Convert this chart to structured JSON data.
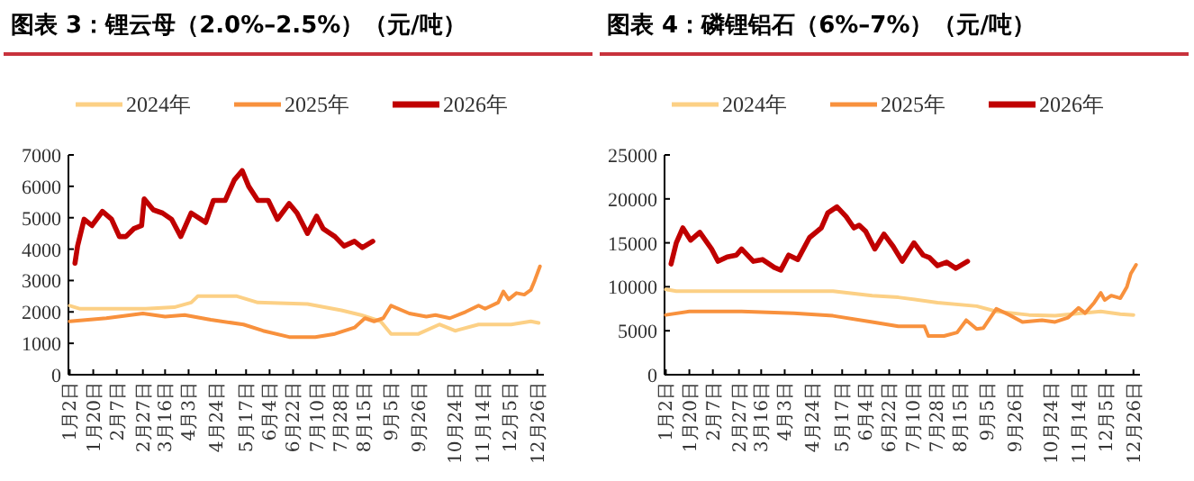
{
  "chart_data": [
    {
      "type": "line",
      "title": "图表 3：锂云母（2.0%–2.5%）（元/吨）",
      "legend": "top",
      "xlim": [
        "--01-01",
        "--12-31"
      ],
      "xticks": [
        {
          "value": "--01-02",
          "label": "1月2日"
        },
        {
          "value": "--01-20",
          "label": "1月20日"
        },
        {
          "value": "--02-07",
          "label": "2月7日"
        },
        {
          "value": "--02-27",
          "label": "2月27日"
        },
        {
          "value": "--03-16",
          "label": "3月16日"
        },
        {
          "value": "--04-03",
          "label": "4月3日"
        },
        {
          "value": "--04-24",
          "label": "4月24日"
        },
        {
          "value": "--05-17",
          "label": "5月17日"
        },
        {
          "value": "--06-04",
          "label": "6月4日"
        },
        {
          "value": "--06-22",
          "label": "6月22日"
        },
        {
          "value": "--07-10",
          "label": "7月10日"
        },
        {
          "value": "--07-28",
          "label": "7月28日"
        },
        {
          "value": "--08-15",
          "label": "8月15日"
        },
        {
          "value": "--09-05",
          "label": "9月5日"
        },
        {
          "value": "--09-26",
          "label": "9月26日"
        },
        {
          "value": "--10-24",
          "label": "10月24日"
        },
        {
          "value": "--11-14",
          "label": "11月14日"
        },
        {
          "value": "--12-05",
          "label": "12月5日"
        },
        {
          "value": "--12-26",
          "label": "12月26日"
        }
      ],
      "ylim": [
        0,
        7000
      ],
      "yticks": [
        0,
        1000,
        2000,
        3000,
        4000,
        5000,
        6000,
        7000
      ],
      "series": [
        {
          "name": "2024年",
          "color": "#fcd085",
          "x": [
            "--01-02",
            "--01-10",
            "--03-01",
            "--03-23",
            "--04-05",
            "--04-10",
            "--05-10",
            "--05-26",
            "--07-03",
            "--07-29",
            "--08-13",
            "--08-28",
            "--09-05",
            "--09-26",
            "--10-12",
            "--10-24",
            "--11-11",
            "--12-06",
            "--12-21",
            "--12-27"
          ],
          "values": [
            2200,
            2100,
            2100,
            2150,
            2300,
            2500,
            2500,
            2300,
            2250,
            2050,
            1900,
            1700,
            1300,
            1300,
            1600,
            1400,
            1600,
            1600,
            1700,
            1650
          ]
        },
        {
          "name": "2025年",
          "color": "#f8913d",
          "x": [
            "--01-02",
            "--01-30",
            "--02-27",
            "--03-16",
            "--03-31",
            "--04-20",
            "--05-15",
            "--05-30",
            "--06-19",
            "--07-09",
            "--07-24",
            "--08-08",
            "--08-16",
            "--08-23",
            "--08-30",
            "--09-05",
            "--09-19",
            "--10-02",
            "--10-09",
            "--10-20",
            "--11-01",
            "--11-11",
            "--11-16",
            "--11-26",
            "--11-30",
            "--12-04",
            "--12-10",
            "--12-16",
            "--12-21",
            "--12-24",
            "--12-28"
          ],
          "values": [
            1700,
            1800,
            1950,
            1850,
            1900,
            1750,
            1600,
            1400,
            1200,
            1200,
            1300,
            1500,
            1800,
            1700,
            1800,
            2200,
            1950,
            1850,
            1900,
            1800,
            2000,
            2200,
            2100,
            2300,
            2650,
            2400,
            2600,
            2550,
            2700,
            3000,
            3450
          ]
        },
        {
          "name": "2026年",
          "color": "#c00000",
          "x": [
            "--01-06",
            "--01-08",
            "--01-13",
            "--01-19",
            "--01-27",
            "--02-03",
            "--02-09",
            "--02-14",
            "--02-20",
            "--02-26",
            "--02-28",
            "--03-07",
            "--03-14",
            "--03-21",
            "--03-28",
            "--04-05",
            "--04-16",
            "--04-22",
            "--05-01",
            "--05-08",
            "--05-14",
            "--05-19",
            "--05-26",
            "--06-03",
            "--06-10",
            "--06-19",
            "--06-25",
            "--07-03",
            "--07-10",
            "--07-15",
            "--07-24",
            "--07-31",
            "--08-08",
            "--08-14",
            "--08-22"
          ],
          "values": [
            3550,
            4100,
            4950,
            4750,
            5200,
            4950,
            4400,
            4400,
            4650,
            4750,
            5600,
            5250,
            5150,
            4950,
            4400,
            5150,
            4850,
            5550,
            5550,
            6200,
            6500,
            6000,
            5550,
            5550,
            4950,
            5450,
            5150,
            4500,
            5050,
            4650,
            4400,
            4100,
            4250,
            4050,
            4250
          ]
        }
      ]
    },
    {
      "type": "line",
      "title": "图表 4：磷锂铝石（6%–7%）（元/吨）",
      "legend": "top",
      "xlim": [
        "--01-01",
        "--12-31"
      ],
      "xticks": [
        {
          "value": "--01-02",
          "label": "1月2日"
        },
        {
          "value": "--01-20",
          "label": "1月20日"
        },
        {
          "value": "--02-07",
          "label": "2月7日"
        },
        {
          "value": "--02-27",
          "label": "2月27日"
        },
        {
          "value": "--03-16",
          "label": "3月16日"
        },
        {
          "value": "--04-03",
          "label": "4月3日"
        },
        {
          "value": "--04-24",
          "label": "4月24日"
        },
        {
          "value": "--05-17",
          "label": "5月17日"
        },
        {
          "value": "--06-04",
          "label": "6月4日"
        },
        {
          "value": "--06-22",
          "label": "6月22日"
        },
        {
          "value": "--07-10",
          "label": "7月10日"
        },
        {
          "value": "--07-28",
          "label": "7月28日"
        },
        {
          "value": "--08-15",
          "label": "8月15日"
        },
        {
          "value": "--09-05",
          "label": "9月5日"
        },
        {
          "value": "--09-26",
          "label": "9月26日"
        },
        {
          "value": "--10-24",
          "label": "10月24日"
        },
        {
          "value": "--11-14",
          "label": "11月14日"
        },
        {
          "value": "--12-05",
          "label": "12月5日"
        },
        {
          "value": "--12-26",
          "label": "12月26日"
        }
      ],
      "ylim": [
        0,
        25000
      ],
      "yticks": [
        0,
        5000,
        10000,
        15000,
        20000,
        25000
      ],
      "series": [
        {
          "name": "2024年",
          "color": "#fcd085",
          "x": [
            "--01-02",
            "--01-10",
            "--05-10",
            "--06-09",
            "--06-29",
            "--07-29",
            "--08-28",
            "--09-12",
            "--10-07",
            "--10-27",
            "--11-16",
            "--12-01",
            "--12-16",
            "--12-26"
          ],
          "values": [
            9700,
            9500,
            9500,
            9000,
            8800,
            8200,
            7800,
            7200,
            6800,
            6700,
            7000,
            7200,
            6900,
            6800
          ]
        },
        {
          "name": "2025年",
          "color": "#f8913d",
          "x": [
            "--01-02",
            "--01-20",
            "--03-01",
            "--04-10",
            "--05-10",
            "--06-09",
            "--06-29",
            "--07-19",
            "--07-22",
            "--08-03",
            "--08-13",
            "--08-20",
            "--08-28",
            "--09-02",
            "--09-12",
            "--09-22",
            "--10-02",
            "--10-17",
            "--10-27",
            "--11-06",
            "--11-14",
            "--11-19",
            "--11-26",
            "--12-01",
            "--12-04",
            "--12-09",
            "--12-16",
            "--12-21",
            "--12-24",
            "--12-28"
          ],
          "values": [
            6800,
            7200,
            7200,
            7000,
            6700,
            6000,
            5500,
            5500,
            4400,
            4400,
            4800,
            6200,
            5200,
            5300,
            7500,
            6800,
            6000,
            6200,
            6000,
            6500,
            7600,
            7000,
            8200,
            9300,
            8500,
            9000,
            8700,
            10000,
            11500,
            12500
          ]
        },
        {
          "name": "2026年",
          "color": "#c00000",
          "x": [
            "--01-06",
            "--01-10",
            "--01-15",
            "--01-21",
            "--01-28",
            "--02-06",
            "--02-11",
            "--02-18",
            "--02-25",
            "--03-01",
            "--03-10",
            "--03-17",
            "--03-26",
            "--03-31",
            "--04-06",
            "--04-13",
            "--04-22",
            "--05-01",
            "--05-06",
            "--05-13",
            "--05-20",
            "--05-26",
            "--05-30",
            "--06-04",
            "--06-11",
            "--06-18",
            "--06-25",
            "--07-02",
            "--07-11",
            "--07-18",
            "--07-23",
            "--07-29",
            "--08-05",
            "--08-12",
            "--08-21"
          ],
          "values": [
            12600,
            15000,
            16700,
            15300,
            16200,
            14300,
            12900,
            13400,
            13600,
            14300,
            12900,
            13100,
            12200,
            11900,
            13600,
            13100,
            15600,
            16700,
            18400,
            19100,
            18000,
            16700,
            17000,
            16300,
            14300,
            16000,
            14600,
            12900,
            15000,
            13600,
            13300,
            12400,
            12800,
            12100,
            12900
          ]
        }
      ]
    }
  ]
}
